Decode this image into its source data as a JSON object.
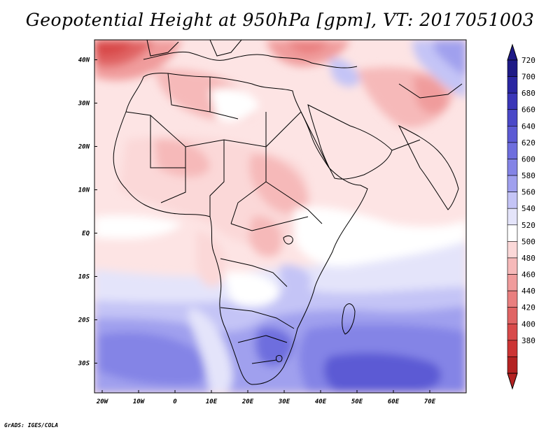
{
  "title": "Geopotential Height at 950hPa [gpm], VT: 2017051003",
  "footer": "GrADS: IGES/COLA",
  "map": {
    "lat_labels": [
      {
        "text": "40N",
        "lat": 40
      },
      {
        "text": "30N",
        "lat": 30
      },
      {
        "text": "20N",
        "lat": 20
      },
      {
        "text": "10N",
        "lat": 10
      },
      {
        "text": "EQ",
        "lat": 0
      },
      {
        "text": "10S",
        "lat": -10
      },
      {
        "text": "20S",
        "lat": -20
      },
      {
        "text": "30S",
        "lat": -30
      }
    ],
    "lon_labels": [
      {
        "text": "20W",
        "lon": -20
      },
      {
        "text": "10W",
        "lon": -10
      },
      {
        "text": "0",
        "lon": 0
      },
      {
        "text": "10E",
        "lon": 10
      },
      {
        "text": "20E",
        "lon": 20
      },
      {
        "text": "30E",
        "lon": 30
      },
      {
        "text": "40E",
        "lon": 40
      },
      {
        "text": "50E",
        "lon": 50
      },
      {
        "text": "60E",
        "lon": 60
      },
      {
        "text": "70E",
        "lon": 70
      }
    ]
  },
  "colorbar": {
    "levels": [
      "720",
      "700",
      "680",
      "660",
      "640",
      "620",
      "600",
      "580",
      "560",
      "540",
      "520",
      "500",
      "480",
      "460",
      "440",
      "420",
      "400",
      "380"
    ],
    "colors": [
      "#1e1a86",
      "#2a26a2",
      "#3a36b8",
      "#4a48c8",
      "#5c5ad4",
      "#6e6ede",
      "#8484e6",
      "#a0a0ee",
      "#c4c4f6",
      "#e4e4fa",
      "#ffffff",
      "#fbd8d8",
      "#f6b9b9",
      "#f09c9c",
      "#e97f7f",
      "#e06464",
      "#d84a4a",
      "#cc3434",
      "#b42222"
    ],
    "top_color": "#1e1a86",
    "bottom_color": "#b42222"
  }
}
